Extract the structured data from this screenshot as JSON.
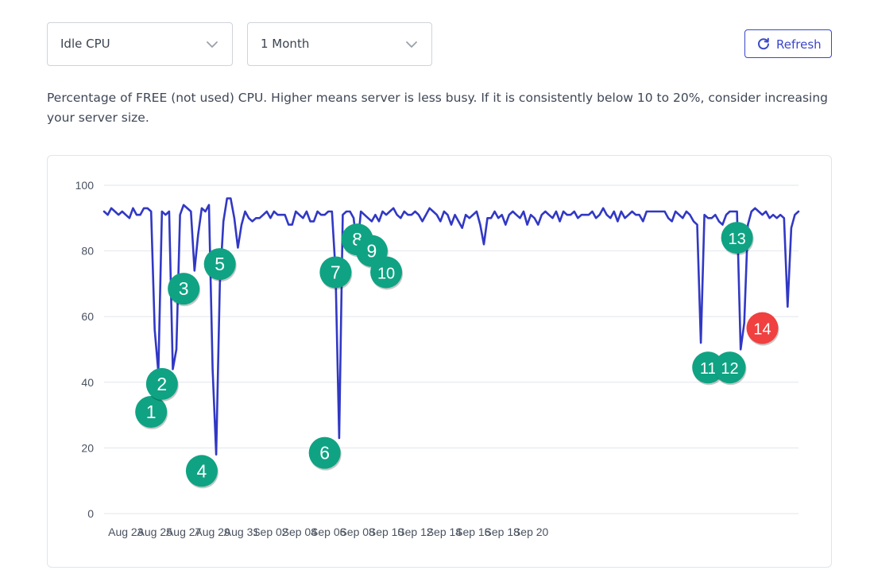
{
  "controls": {
    "metric_select": "Idle CPU",
    "range_select": "1 Month",
    "refresh_label": "Refresh"
  },
  "description": "Percentage of FREE (not used) CPU. Higher means server is less busy. If it is consistently below 10 to 20%, consider increasing your server size.",
  "colors": {
    "line": "#3138c4",
    "marker_green": "#0fa383",
    "marker_red": "#f04040",
    "grid": "#e3e6eb",
    "axis_text": "#4a5260",
    "button_accent": "#3a47c9"
  },
  "icons": [
    "chevron-down-icon",
    "refresh-icon"
  ],
  "chart_data": {
    "type": "line",
    "xlabel": "",
    "ylabel": "",
    "ylim": [
      0,
      100
    ],
    "yticks": [
      0,
      20,
      40,
      60,
      80,
      100
    ],
    "xticks": [
      "Aug 23",
      "Aug 25",
      "Aug 27",
      "Aug 29",
      "Aug 31",
      "Sep 02",
      "Sep 04",
      "Sep 06",
      "Sep 08",
      "Sep 10",
      "Sep 12",
      "Sep 14",
      "Sep 16",
      "Sep 18",
      "Sep 20"
    ],
    "grid": true,
    "series": [
      {
        "points": [
          [
            "2023-08-21 12:00",
            92
          ],
          [
            "2023-08-21 18:00",
            91
          ],
          [
            "2023-08-22 00:00",
            93
          ],
          [
            "2023-08-22 06:00",
            92
          ],
          [
            "2023-08-22 12:00",
            91
          ],
          [
            "2023-08-22 18:00",
            92
          ],
          [
            "2023-08-23 00:00",
            91
          ],
          [
            "2023-08-23 06:00",
            90
          ],
          [
            "2023-08-23 12:00",
            93
          ],
          [
            "2023-08-23 18:00",
            91
          ],
          [
            "2023-08-24 00:00",
            91
          ],
          [
            "2023-08-24 06:00",
            93
          ],
          [
            "2023-08-24 12:00",
            93
          ],
          [
            "2023-08-24 18:00",
            92
          ],
          [
            "2023-08-25 00:00",
            56
          ],
          [
            "2023-08-25 06:00",
            43
          ],
          [
            "2023-08-25 12:00",
            92
          ],
          [
            "2023-08-25 18:00",
            91
          ],
          [
            "2023-08-26 00:00",
            92
          ],
          [
            "2023-08-26 06:00",
            44
          ],
          [
            "2023-08-26 12:00",
            50
          ],
          [
            "2023-08-26 18:00",
            91
          ],
          [
            "2023-08-27 00:00",
            94
          ],
          [
            "2023-08-27 06:00",
            93
          ],
          [
            "2023-08-27 12:00",
            92
          ],
          [
            "2023-08-27 18:00",
            74
          ],
          [
            "2023-08-28 00:00",
            85
          ],
          [
            "2023-08-28 06:00",
            93
          ],
          [
            "2023-08-28 12:00",
            92
          ],
          [
            "2023-08-28 18:00",
            94
          ],
          [
            "2023-08-29 00:00",
            44
          ],
          [
            "2023-08-29 06:00",
            18
          ],
          [
            "2023-08-29 12:00",
            70
          ],
          [
            "2023-08-29 18:00",
            89
          ],
          [
            "2023-08-30 00:00",
            96
          ],
          [
            "2023-08-30 06:00",
            96
          ],
          [
            "2023-08-30 12:00",
            90
          ],
          [
            "2023-08-30 18:00",
            81
          ],
          [
            "2023-08-31 00:00",
            88
          ],
          [
            "2023-08-31 06:00",
            92
          ],
          [
            "2023-08-31 12:00",
            90
          ],
          [
            "2023-08-31 18:00",
            89
          ],
          [
            "2023-09-01 00:00",
            90
          ],
          [
            "2023-09-01 06:00",
            90
          ],
          [
            "2023-09-01 12:00",
            91
          ],
          [
            "2023-09-01 18:00",
            92
          ],
          [
            "2023-09-02 00:00",
            90
          ],
          [
            "2023-09-02 06:00",
            92
          ],
          [
            "2023-09-02 12:00",
            91
          ],
          [
            "2023-09-02 18:00",
            91
          ],
          [
            "2023-09-03 00:00",
            91
          ],
          [
            "2023-09-03 06:00",
            88
          ],
          [
            "2023-09-03 12:00",
            88
          ],
          [
            "2023-09-03 18:00",
            92
          ],
          [
            "2023-09-04 00:00",
            91
          ],
          [
            "2023-09-04 06:00",
            90
          ],
          [
            "2023-09-04 12:00",
            92
          ],
          [
            "2023-09-04 18:00",
            89
          ],
          [
            "2023-09-05 00:00",
            89
          ],
          [
            "2023-09-05 06:00",
            92
          ],
          [
            "2023-09-05 12:00",
            91
          ],
          [
            "2023-09-05 18:00",
            91
          ],
          [
            "2023-09-06 00:00",
            92
          ],
          [
            "2023-09-06 06:00",
            92
          ],
          [
            "2023-09-06 12:00",
            74
          ],
          [
            "2023-09-06 18:00",
            23
          ],
          [
            "2023-09-07 00:00",
            91
          ],
          [
            "2023-09-07 06:00",
            92
          ],
          [
            "2023-09-07 12:00",
            92
          ],
          [
            "2023-09-07 18:00",
            90
          ],
          [
            "2023-09-08 00:00",
            80
          ],
          [
            "2023-09-08 06:00",
            92
          ],
          [
            "2023-09-08 12:00",
            91
          ],
          [
            "2023-09-08 18:00",
            90
          ],
          [
            "2023-09-09 00:00",
            89
          ],
          [
            "2023-09-09 06:00",
            91
          ],
          [
            "2023-09-09 12:00",
            89
          ],
          [
            "2023-09-09 18:00",
            92
          ],
          [
            "2023-09-10 00:00",
            91
          ],
          [
            "2023-09-10 06:00",
            92
          ],
          [
            "2023-09-10 12:00",
            93
          ],
          [
            "2023-09-10 18:00",
            91
          ],
          [
            "2023-09-11 00:00",
            90
          ],
          [
            "2023-09-11 06:00",
            92
          ],
          [
            "2023-09-11 12:00",
            91
          ],
          [
            "2023-09-11 18:00",
            91
          ],
          [
            "2023-09-12 00:00",
            92
          ],
          [
            "2023-09-12 06:00",
            91
          ],
          [
            "2023-09-12 12:00",
            89
          ],
          [
            "2023-09-12 18:00",
            91
          ],
          [
            "2023-09-13 00:00",
            93
          ],
          [
            "2023-09-13 06:00",
            92
          ],
          [
            "2023-09-13 12:00",
            91
          ],
          [
            "2023-09-13 18:00",
            89
          ],
          [
            "2023-09-14 00:00",
            92
          ],
          [
            "2023-09-14 06:00",
            91
          ],
          [
            "2023-09-14 12:00",
            88
          ],
          [
            "2023-09-14 18:00",
            91
          ],
          [
            "2023-09-15 00:00",
            89
          ],
          [
            "2023-09-15 06:00",
            87
          ],
          [
            "2023-09-15 12:00",
            91
          ],
          [
            "2023-09-15 18:00",
            90
          ],
          [
            "2023-09-16 00:00",
            91
          ],
          [
            "2023-09-16 06:00",
            92
          ],
          [
            "2023-09-16 12:00",
            88
          ],
          [
            "2023-09-16 18:00",
            82
          ],
          [
            "2023-09-17 00:00",
            90
          ],
          [
            "2023-09-17 06:00",
            90
          ],
          [
            "2023-09-17 12:00",
            92
          ],
          [
            "2023-09-17 18:00",
            90
          ],
          [
            "2023-09-18 00:00",
            91
          ],
          [
            "2023-09-18 06:00",
            88
          ],
          [
            "2023-09-18 12:00",
            91
          ],
          [
            "2023-09-18 18:00",
            92
          ],
          [
            "2023-09-19 00:00",
            91
          ],
          [
            "2023-09-19 06:00",
            90
          ],
          [
            "2023-09-19 12:00",
            92
          ],
          [
            "2023-09-19 18:00",
            88
          ],
          [
            "2023-09-20 00:00",
            91
          ],
          [
            "2023-09-20 06:00",
            90
          ],
          [
            "2023-09-20 12:00",
            88
          ],
          [
            "2023-09-20 18:00",
            91
          ],
          [
            "2023-09-21 00:00",
            92
          ],
          [
            "2023-09-21 06:00",
            91
          ],
          [
            "2023-09-21 12:00",
            90
          ],
          [
            "2023-09-21 18:00",
            92
          ],
          [
            "2023-09-22 00:00",
            89
          ],
          [
            "2023-09-22 06:00",
            92
          ],
          [
            "2023-09-22 12:00",
            91
          ],
          [
            "2023-09-22 18:00",
            91
          ],
          [
            "2023-09-23 00:00",
            92
          ],
          [
            "2023-09-23 06:00",
            90
          ],
          [
            "2023-09-23 12:00",
            91
          ],
          [
            "2023-09-23 18:00",
            91
          ],
          [
            "2023-09-24 00:00",
            91
          ],
          [
            "2023-09-24 06:00",
            92
          ],
          [
            "2023-09-24 12:00",
            90
          ],
          [
            "2023-09-24 18:00",
            91
          ],
          [
            "2023-09-25 00:00",
            93
          ],
          [
            "2023-09-25 06:00",
            91
          ],
          [
            "2023-09-25 12:00",
            90
          ],
          [
            "2023-09-25 18:00",
            92
          ],
          [
            "2023-09-26 00:00",
            89
          ],
          [
            "2023-09-26 06:00",
            92
          ],
          [
            "2023-09-26 12:00",
            90
          ],
          [
            "2023-09-26 18:00",
            91
          ],
          [
            "2023-09-27 00:00",
            92
          ],
          [
            "2023-09-27 06:00",
            91
          ],
          [
            "2023-09-27 12:00",
            91
          ],
          [
            "2023-09-27 18:00",
            89
          ],
          [
            "2023-09-28 00:00",
            92
          ],
          [
            "2023-09-28 06:00",
            92
          ],
          [
            "2023-09-28 12:00",
            92
          ],
          [
            "2023-09-28 18:00",
            92
          ],
          [
            "2023-09-29 00:00",
            92
          ],
          [
            "2023-09-29 06:00",
            92
          ],
          [
            "2023-09-29 12:00",
            90
          ],
          [
            "2023-09-29 18:00",
            89
          ],
          [
            "2023-09-30 00:00",
            92
          ],
          [
            "2023-09-30 06:00",
            91
          ],
          [
            "2023-09-30 12:00",
            90
          ],
          [
            "2023-09-30 18:00",
            92
          ],
          [
            "2023-10-01 00:00",
            91
          ],
          [
            "2023-10-01 06:00",
            89
          ],
          [
            "2023-10-01 12:00",
            88
          ],
          [
            "2023-10-01 18:00",
            52
          ],
          [
            "2023-10-02 00:00",
            91
          ],
          [
            "2023-10-02 06:00",
            90
          ],
          [
            "2023-10-02 12:00",
            90
          ],
          [
            "2023-10-02 18:00",
            91
          ],
          [
            "2023-10-03 00:00",
            89
          ],
          [
            "2023-10-03 06:00",
            88
          ],
          [
            "2023-10-03 12:00",
            91
          ],
          [
            "2023-10-03 18:00",
            92
          ],
          [
            "2023-10-04 00:00",
            92
          ],
          [
            "2023-10-04 06:00",
            92
          ],
          [
            "2023-10-04 12:00",
            50
          ],
          [
            "2023-10-04 18:00",
            58
          ],
          [
            "2023-10-05 00:00",
            88
          ],
          [
            "2023-10-05 06:00",
            92
          ],
          [
            "2023-10-05 12:00",
            93
          ],
          [
            "2023-10-05 18:00",
            92
          ],
          [
            "2023-10-06 00:00",
            91
          ],
          [
            "2023-10-06 06:00",
            92
          ],
          [
            "2023-10-06 12:00",
            90
          ],
          [
            "2023-10-06 18:00",
            91
          ],
          [
            "2023-10-07 00:00",
            90
          ],
          [
            "2023-10-07 06:00",
            91
          ],
          [
            "2023-10-07 12:00",
            90
          ],
          [
            "2023-10-07 18:00",
            63
          ],
          [
            "2023-10-08 00:00",
            87
          ],
          [
            "2023-10-08 06:00",
            91
          ],
          [
            "2023-10-08 12:00",
            92
          ]
        ]
      }
    ],
    "annotations": [
      {
        "label": "1",
        "color": "green",
        "x": "2023-08-24 18:00",
        "y": 31
      },
      {
        "label": "2",
        "color": "green",
        "x": "2023-08-25 12:00",
        "y": 39.5
      },
      {
        "label": "3",
        "color": "green",
        "x": "2023-08-27 00:00",
        "y": 68.5
      },
      {
        "label": "4",
        "color": "green",
        "x": "2023-08-28 06:00",
        "y": 13
      },
      {
        "label": "5",
        "color": "green",
        "x": "2023-08-29 12:00",
        "y": 76
      },
      {
        "label": "6",
        "color": "green",
        "x": "2023-09-05 18:00",
        "y": 18.5
      },
      {
        "label": "7",
        "color": "green",
        "x": "2023-09-06 12:00",
        "y": 73.5
      },
      {
        "label": "8",
        "color": "green",
        "x": "2023-09-08 00:00",
        "y": 83.5
      },
      {
        "label": "9",
        "color": "green",
        "x": "2023-09-09 00:00",
        "y": 80
      },
      {
        "label": "10",
        "color": "green",
        "x": "2023-09-10 00:00",
        "y": 73.5
      },
      {
        "label": "11",
        "color": "green",
        "x": "2023-10-02 06:00",
        "y": 44.5
      },
      {
        "label": "12",
        "color": "green",
        "x": "2023-10-03 18:00",
        "y": 44.5
      },
      {
        "label": "13",
        "color": "green",
        "x": "2023-10-04 06:00",
        "y": 84
      },
      {
        "label": "14",
        "color": "red",
        "x": "2023-10-06 00:00",
        "y": 56.5
      }
    ]
  }
}
